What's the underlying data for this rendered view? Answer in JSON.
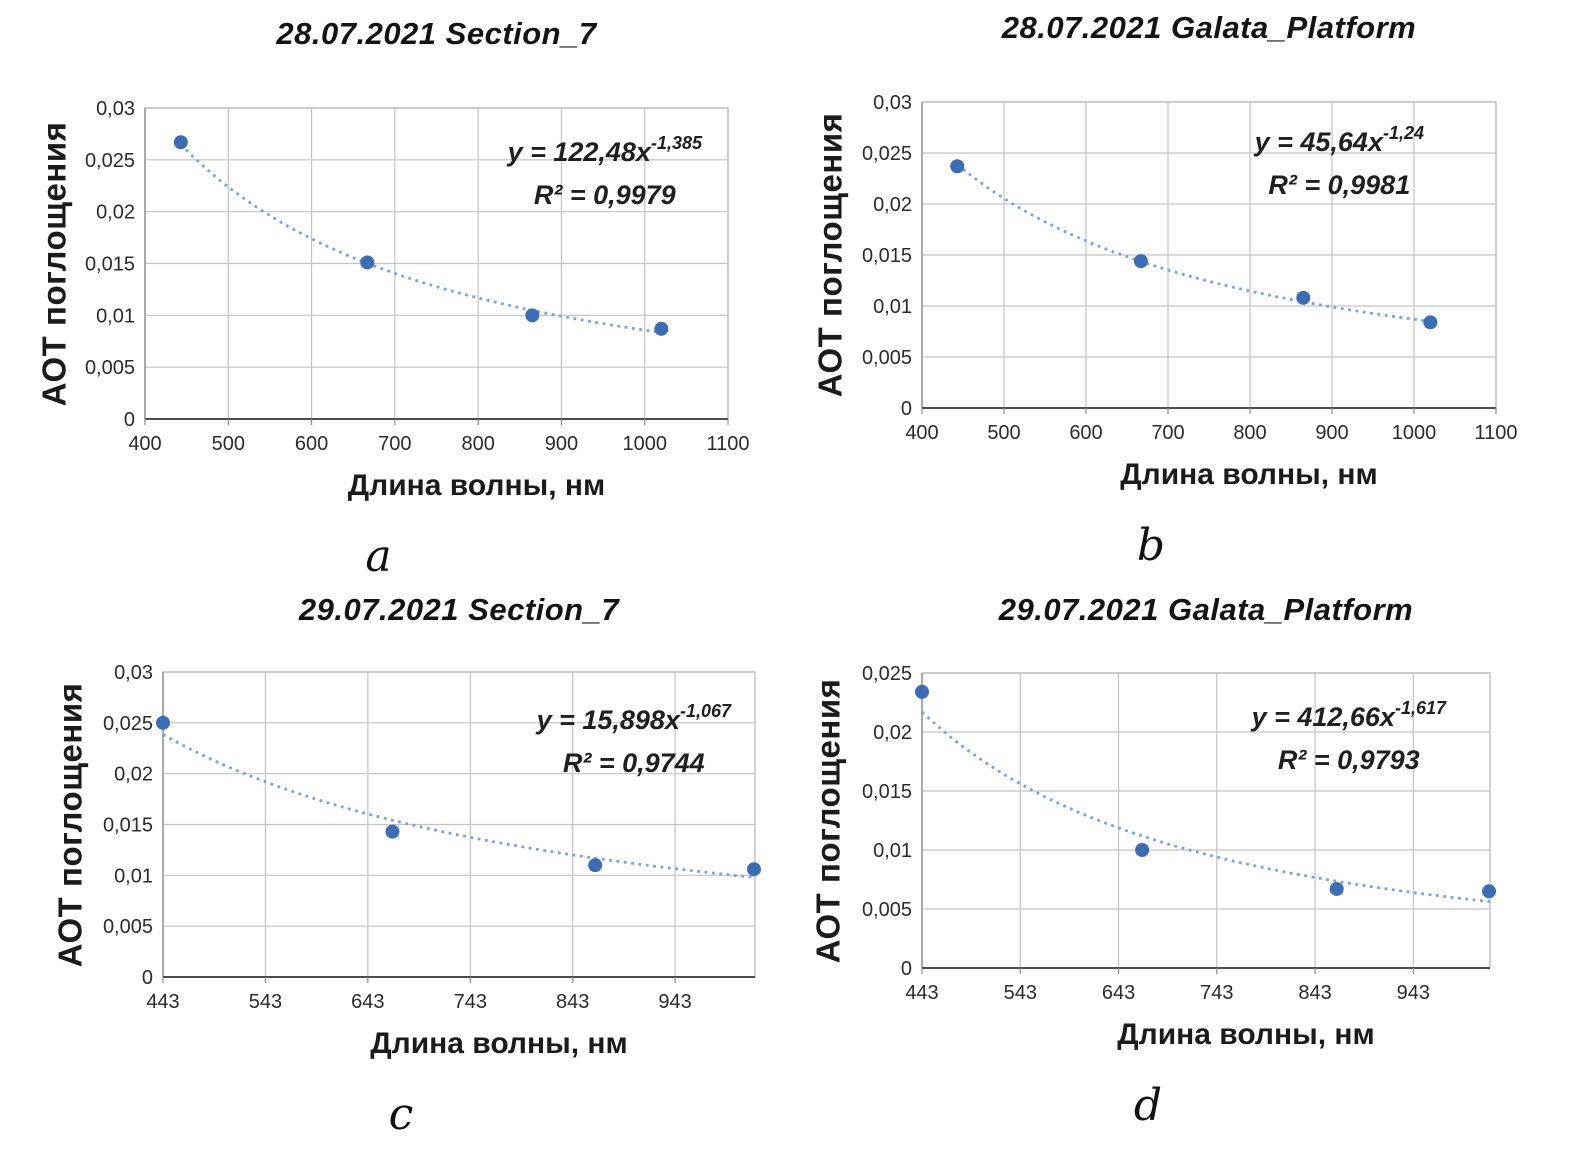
{
  "colors": {
    "point": "#3c6cb4",
    "trendline": "#7da2d3",
    "gridline": "#c3c3c3",
    "plot_border": "#b5b5b5",
    "x_axis": "#4d4d4d",
    "y_axis": "#9a9a9a",
    "tick_text": "#2b2b2b",
    "background": "#ffffff"
  },
  "chart_data": [
    {
      "type": "scatter",
      "title": "28.07.2021 Section_7",
      "letter": "a",
      "xlabel": "Длина волны, нм",
      "ylabel": "АОТ поглощения",
      "equation": {
        "base": "y = 122,48x",
        "exponent": "-1,385",
        "r2": "R² = 0,9979"
      },
      "trend": {
        "coefficient": 122.48,
        "exponent": -1.385,
        "x_start": 443,
        "x_end": 1020
      },
      "points": [
        {
          "x": 443,
          "y": 0.0267
        },
        {
          "x": 667,
          "y": 0.0151
        },
        {
          "x": 865,
          "y": 0.01
        },
        {
          "x": 1020,
          "y": 0.0087
        }
      ],
      "xlim": [
        400,
        1100
      ],
      "ylim": [
        0,
        0.03
      ],
      "x_ticks": [
        {
          "value": 400,
          "label": "400"
        },
        {
          "value": 500,
          "label": "500"
        },
        {
          "value": 600,
          "label": "600"
        },
        {
          "value": 700,
          "label": "700"
        },
        {
          "value": 800,
          "label": "800"
        },
        {
          "value": 900,
          "label": "900"
        },
        {
          "value": 1000,
          "label": "1000"
        },
        {
          "value": 1100,
          "label": "1100"
        }
      ],
      "y_ticks": [
        {
          "value": 0,
          "label": "0"
        },
        {
          "value": 0.005,
          "label": "0,005"
        },
        {
          "value": 0.01,
          "label": "0,01"
        },
        {
          "value": 0.015,
          "label": "0,015"
        },
        {
          "value": 0.02,
          "label": "0,02"
        },
        {
          "value": 0.025,
          "label": "0,025"
        },
        {
          "value": 0.03,
          "label": "0,03"
        }
      ],
      "grid": true,
      "legend": false
    },
    {
      "type": "scatter",
      "title": "28.07.2021 Galata_Platform",
      "letter": "b",
      "xlabel": "Длина волны, нм",
      "ylabel": "АОТ поглощения",
      "equation": {
        "base": "y = 45,64x",
        "exponent": "-1,24",
        "r2": "R² = 0,9981"
      },
      "trend": {
        "coefficient": 45.64,
        "exponent": -1.24,
        "x_start": 443,
        "x_end": 1020
      },
      "points": [
        {
          "x": 443,
          "y": 0.0237
        },
        {
          "x": 667,
          "y": 0.0144
        },
        {
          "x": 865,
          "y": 0.0108
        },
        {
          "x": 1020,
          "y": 0.0084
        }
      ],
      "xlim": [
        400,
        1100
      ],
      "ylim": [
        0,
        0.03
      ],
      "x_ticks": [
        {
          "value": 400,
          "label": "400"
        },
        {
          "value": 500,
          "label": "500"
        },
        {
          "value": 600,
          "label": "600"
        },
        {
          "value": 700,
          "label": "700"
        },
        {
          "value": 800,
          "label": "800"
        },
        {
          "value": 900,
          "label": "900"
        },
        {
          "value": 1000,
          "label": "1000"
        },
        {
          "value": 1100,
          "label": "1100"
        }
      ],
      "y_ticks": [
        {
          "value": 0,
          "label": "0"
        },
        {
          "value": 0.005,
          "label": "0,005"
        },
        {
          "value": 0.01,
          "label": "0,01"
        },
        {
          "value": 0.015,
          "label": "0,015"
        },
        {
          "value": 0.02,
          "label": "0,02"
        },
        {
          "value": 0.025,
          "label": "0,025"
        },
        {
          "value": 0.03,
          "label": "0,03"
        }
      ],
      "grid": true,
      "legend": false
    },
    {
      "type": "scatter",
      "title": "29.07.2021 Section_7",
      "letter": "c",
      "xlabel": "Длина волны, нм",
      "ylabel": "АОТ поглощения",
      "equation": {
        "base": "y = 15,898x",
        "exponent": "-1,067",
        "r2": "R² = 0,9744"
      },
      "trend": {
        "coefficient": 15.898,
        "exponent": -1.067,
        "x_start": 443,
        "x_end": 1021
      },
      "points": [
        {
          "x": 443,
          "y": 0.025
        },
        {
          "x": 667,
          "y": 0.0143
        },
        {
          "x": 865,
          "y": 0.011
        },
        {
          "x": 1020,
          "y": 0.0106
        }
      ],
      "xlim": [
        443,
        1021
      ],
      "ylim": [
        0,
        0.03
      ],
      "x_ticks": [
        {
          "value": 443,
          "label": "443"
        },
        {
          "value": 543,
          "label": "543"
        },
        {
          "value": 643,
          "label": "643"
        },
        {
          "value": 743,
          "label": "743"
        },
        {
          "value": 843,
          "label": "843"
        },
        {
          "value": 943,
          "label": "943"
        }
      ],
      "y_ticks": [
        {
          "value": 0,
          "label": "0"
        },
        {
          "value": 0.005,
          "label": "0,005"
        },
        {
          "value": 0.01,
          "label": "0,01"
        },
        {
          "value": 0.015,
          "label": "0,015"
        },
        {
          "value": 0.02,
          "label": "0,02"
        },
        {
          "value": 0.025,
          "label": "0,025"
        },
        {
          "value": 0.03,
          "label": "0,03"
        }
      ],
      "grid": true,
      "legend": false
    },
    {
      "type": "scatter",
      "title": "29.07.2021 Galata_Platform",
      "letter": "d",
      "xlabel": "Длина волны, нм",
      "ylabel": "АОТ поглощения",
      "equation": {
        "base": "y = 412,66x",
        "exponent": "-1,617",
        "r2": "R² = 0,9793"
      },
      "trend": {
        "coefficient": 412.66,
        "exponent": -1.617,
        "x_start": 443,
        "x_end": 1021
      },
      "points": [
        {
          "x": 443,
          "y": 0.0234
        },
        {
          "x": 667,
          "y": 0.01
        },
        {
          "x": 865,
          "y": 0.0067
        },
        {
          "x": 1020,
          "y": 0.0065
        }
      ],
      "xlim": [
        443,
        1021
      ],
      "ylim": [
        0,
        0.025
      ],
      "x_ticks": [
        {
          "value": 443,
          "label": "443"
        },
        {
          "value": 543,
          "label": "543"
        },
        {
          "value": 643,
          "label": "643"
        },
        {
          "value": 743,
          "label": "743"
        },
        {
          "value": 843,
          "label": "843"
        },
        {
          "value": 943,
          "label": "943"
        }
      ],
      "y_ticks": [
        {
          "value": 0,
          "label": "0"
        },
        {
          "value": 0.005,
          "label": "0,005"
        },
        {
          "value": 0.01,
          "label": "0,01"
        },
        {
          "value": 0.015,
          "label": "0,015"
        },
        {
          "value": 0.02,
          "label": "0,02"
        },
        {
          "value": 0.025,
          "label": "0,025"
        }
      ],
      "grid": true,
      "legend": false
    }
  ]
}
